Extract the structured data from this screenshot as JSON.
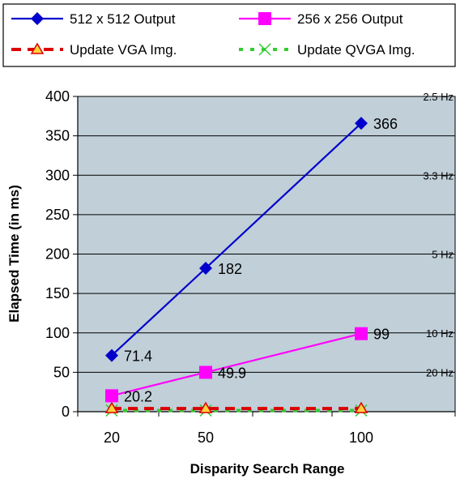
{
  "chart_data": {
    "type": "line",
    "x": [
      20,
      50,
      100
    ],
    "xlabel": "Disparity Search Range",
    "ylabel": "Elapsed Time (in ms)",
    "ylim": [
      0,
      400
    ],
    "yticks": [
      0,
      50,
      100,
      150,
      200,
      250,
      300,
      350,
      400
    ],
    "grid": "horizontal",
    "legend_position": "top",
    "series": [
      {
        "name": "512 x 512 Output",
        "values": [
          71.4,
          182,
          366
        ],
        "labels": [
          "71.4",
          "182",
          "366"
        ],
        "color": "#0000cc",
        "marker": "diamond",
        "dash": "solid"
      },
      {
        "name": "256 x 256 Output",
        "values": [
          20.2,
          49.9,
          99
        ],
        "labels": [
          "20.2",
          "49.9",
          "99"
        ],
        "color": "#ff00ff",
        "marker": "square",
        "dash": "solid"
      },
      {
        "name": "Update VGA Img.",
        "values": [
          4,
          4,
          4
        ],
        "color": "#dd0000",
        "marker": "triangle",
        "dash": "dashed"
      },
      {
        "name": "Update QVGA Img.",
        "values": [
          1.5,
          1.5,
          1.5
        ],
        "color": "#33cc33",
        "marker": "x",
        "dash": "dotted"
      }
    ],
    "annotations": [
      {
        "text": "2.5 Hz",
        "y": 400
      },
      {
        "text": "3.3 Hz",
        "y": 300
      },
      {
        "text": "5 Hz",
        "y": 200
      },
      {
        "text": "10 Hz",
        "y": 100
      },
      {
        "text": "20 Hz",
        "y": 50
      }
    ],
    "colors": {
      "plot_background": "#c0cfd8",
      "grid": "#000000"
    }
  }
}
